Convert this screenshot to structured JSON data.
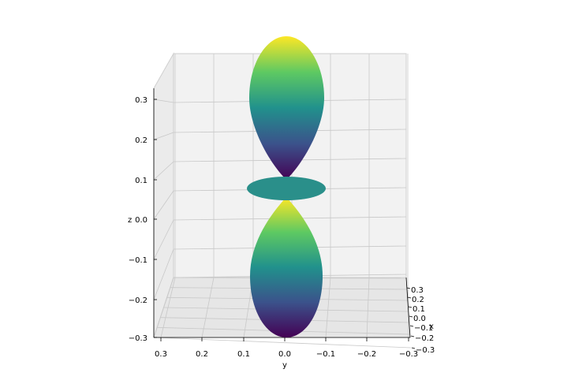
{
  "chart_data": {
    "type": "surface3d",
    "title": "",
    "description_of_surface": "",
    "colormap": [
      "#440154",
      "#3b528b",
      "#21918c",
      "#5ec962",
      "#fde725"
    ],
    "grid": true,
    "axes": {
      "x": {
        "label": "x",
        "ticks": [
          "0.3",
          "0.2",
          "0.1",
          "0.0",
          "−0.1",
          "−0.2",
          "−0.3"
        ],
        "range": [
          -0.3,
          0.3
        ]
      },
      "y": {
        "label": "y",
        "ticks": [
          "0.3",
          "0.2",
          "0.1",
          "0.0",
          "−0.1",
          "−0.2",
          "−0.3"
        ],
        "range": [
          -0.3,
          0.3
        ]
      },
      "z": {
        "label": "z",
        "ticks": [
          "0.3",
          "0.2",
          "0.1",
          "0.0",
          "−0.1",
          "−0.2",
          "−0.3"
        ],
        "range": [
          -0.3,
          0.3
        ]
      }
    },
    "surface": {
      "upper_lobe": {
        "z_max": 0.37,
        "z_neck": 0.11,
        "r_max": 0.09
      },
      "torus": {
        "z": 0.0,
        "r_outer": 0.1
      },
      "lower_lobe": {
        "z_min": -0.36,
        "z_neck": -0.11,
        "r_max": 0.09
      }
    }
  }
}
